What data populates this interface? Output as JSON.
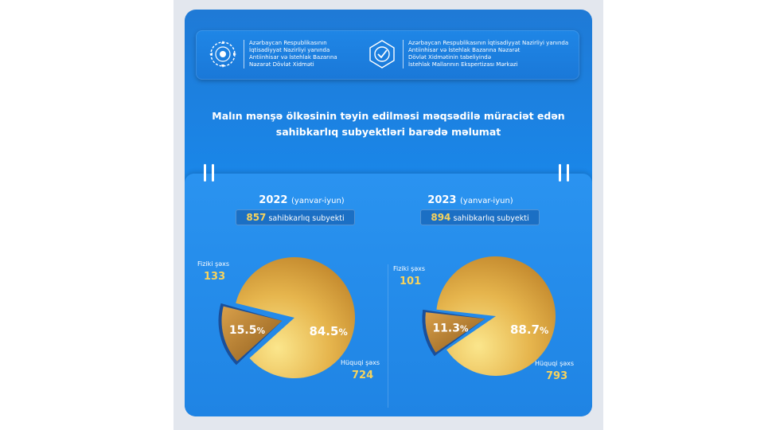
{
  "header": {
    "org_left": [
      "Azərbaycan Respublikasının",
      "İqtisadiyyat Nazirliyi yanında",
      "Antiinhisar və İstehlak Bazarına",
      "Nəzarət Dövlət Xidməti"
    ],
    "org_right": [
      "Azərbaycan Respublikasının İqtisadiyyat Nazirliyi yanında",
      "Antiinhisar və İstehlak Bazarına Nəzarət",
      "Dövlət Xidmətinin tabeliyində",
      "İstehlak Mallarının Ekspertizası Mərkəzi"
    ]
  },
  "title_lines": [
    "Malın mənşə ölkəsinin təyin edilməsi məqsədilə müraciət edən",
    "sahibkarlıq subyektləri barədə məlumat"
  ],
  "colors": {
    "gold_light": "#f5d46a",
    "gold_dark": "#b07a2c",
    "label_yellow": "#f7d35d"
  },
  "chart_data": [
    {
      "type": "pie",
      "year": "2022",
      "period": "(yanvar-iyun)",
      "total": "857",
      "total_label": "sahibkarlıq subyekti",
      "slices": [
        {
          "label": "Fiziki şəxs",
          "value": 133,
          "percent": "15.5"
        },
        {
          "label": "Hüquqi şəxs",
          "value": 724,
          "percent": "84.5"
        }
      ]
    },
    {
      "type": "pie",
      "year": "2023",
      "period": "(yanvar-iyun)",
      "total": "894",
      "total_label": "sahibkarlıq subyekti",
      "slices": [
        {
          "label": "Fiziki şəxs",
          "value": 101,
          "percent": "11.3"
        },
        {
          "label": "Hüquqi şəxs",
          "value": 793,
          "percent": "88.7"
        }
      ]
    }
  ]
}
